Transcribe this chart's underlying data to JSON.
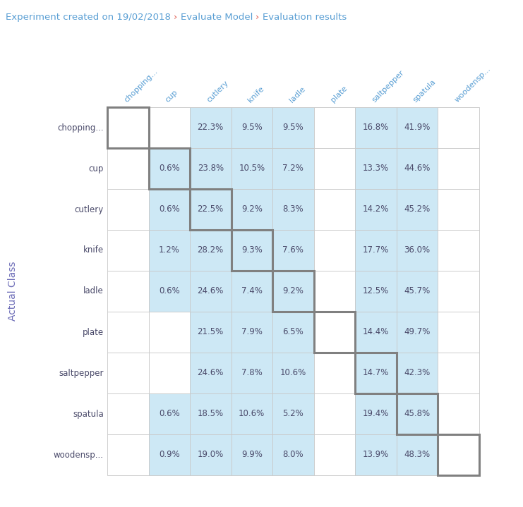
{
  "title_segments": [
    [
      "Experiment created on 19/02/2018 ",
      "#5a9fd4"
    ],
    [
      "› ",
      "#e05a4e"
    ],
    [
      "Evaluate Model ",
      "#5a9fd4"
    ],
    [
      "› ",
      "#e05a4e"
    ],
    [
      "Evaluation results",
      "#5a9fd4"
    ]
  ],
  "classes": [
    "chopping...",
    "cup",
    "cutlery",
    "knife",
    "ladle",
    "plate",
    "saltpepper",
    "spatula",
    "woodensp..."
  ],
  "ylabel": "Actual Class",
  "ylabel_color": "#6e6eb8",
  "matrix": [
    [
      "",
      "",
      "22.3%",
      "9.5%",
      "9.5%",
      "",
      "16.8%",
      "41.9%",
      ""
    ],
    [
      "",
      "0.6%",
      "23.8%",
      "10.5%",
      "7.2%",
      "",
      "13.3%",
      "44.6%",
      ""
    ],
    [
      "",
      "0.6%",
      "22.5%",
      "9.2%",
      "8.3%",
      "",
      "14.2%",
      "45.2%",
      ""
    ],
    [
      "",
      "1.2%",
      "28.2%",
      "9.3%",
      "7.6%",
      "",
      "17.7%",
      "36.0%",
      ""
    ],
    [
      "",
      "0.6%",
      "24.6%",
      "7.4%",
      "9.2%",
      "",
      "12.5%",
      "45.7%",
      ""
    ],
    [
      "",
      "",
      "21.5%",
      "7.9%",
      "6.5%",
      "",
      "14.4%",
      "49.7%",
      ""
    ],
    [
      "",
      "",
      "24.6%",
      "7.8%",
      "10.6%",
      "",
      "14.7%",
      "42.3%",
      ""
    ],
    [
      "",
      "0.6%",
      "18.5%",
      "10.6%",
      "5.2%",
      "",
      "19.4%",
      "45.8%",
      ""
    ],
    [
      "",
      "0.9%",
      "19.0%",
      "9.9%",
      "8.0%",
      "",
      "13.9%",
      "48.3%",
      ""
    ]
  ],
  "cell_colors": [
    [
      "white",
      "white",
      "lightblue",
      "lightblue",
      "lightblue",
      "white",
      "lightblue",
      "lightblue",
      "white"
    ],
    [
      "white",
      "lightblue",
      "lightblue",
      "lightblue",
      "lightblue",
      "white",
      "lightblue",
      "lightblue",
      "white"
    ],
    [
      "white",
      "lightblue",
      "lightblue",
      "lightblue",
      "lightblue",
      "white",
      "lightblue",
      "lightblue",
      "white"
    ],
    [
      "white",
      "lightblue",
      "lightblue",
      "lightblue",
      "lightblue",
      "white",
      "lightblue",
      "lightblue",
      "white"
    ],
    [
      "white",
      "lightblue",
      "lightblue",
      "lightblue",
      "lightblue",
      "white",
      "lightblue",
      "lightblue",
      "white"
    ],
    [
      "white",
      "white",
      "lightblue",
      "lightblue",
      "lightblue",
      "white",
      "lightblue",
      "lightblue",
      "white"
    ],
    [
      "white",
      "white",
      "lightblue",
      "lightblue",
      "lightblue",
      "white",
      "lightblue",
      "lightblue",
      "white"
    ],
    [
      "white",
      "lightblue",
      "lightblue",
      "lightblue",
      "lightblue",
      "white",
      "lightblue",
      "lightblue",
      "white"
    ],
    [
      "white",
      "lightblue",
      "lightblue",
      "lightblue",
      "lightblue",
      "white",
      "lightblue",
      "lightblue",
      "white"
    ]
  ],
  "light_blue": "#cde8f5",
  "cell_text_color": "#4a4a6a",
  "grid_color": "#c8c8c8",
  "diag_border_color": "#808080",
  "bg_color": "#ffffff",
  "col_header_color": "#5a9fd4",
  "title_fontsize": 9.5,
  "cell_fontsize": 8.5,
  "label_fontsize": 8.5,
  "col_header_fontsize": 8.0
}
